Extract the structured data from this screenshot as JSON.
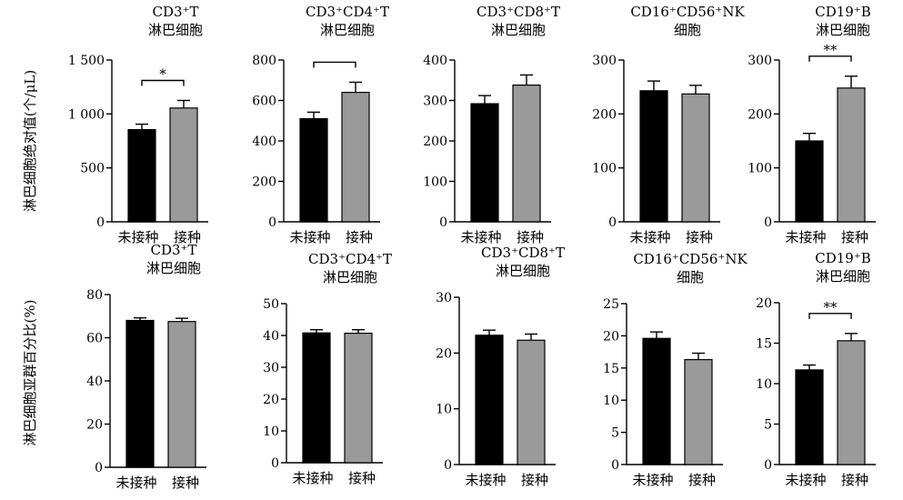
{
  "figure": {
    "row_labels": [
      "淋巴细胞绝对值(个/μL)",
      "淋巴细胞亚群百分比(%)"
    ]
  },
  "chart_data": [
    {
      "type": "bar",
      "title": "CD3⁺T|淋巴细胞",
      "categories": [
        "未接种",
        "接种"
      ],
      "values": [
        855,
        1055
      ],
      "errors": [
        50,
        70
      ],
      "ylim": [
        0,
        1500
      ],
      "yticks": [
        0,
        500,
        1000,
        1500
      ],
      "ytick_labels": [
        "0",
        "500",
        "1 000",
        "1 500"
      ],
      "colors": [
        "#000000",
        "#9a9a9a"
      ],
      "significance": "*"
    },
    {
      "type": "bar",
      "title": "CD3⁺CD4⁺T|淋巴细胞",
      "categories": [
        "未接种",
        "接种"
      ],
      "values": [
        510,
        640
      ],
      "errors": [
        32,
        50
      ],
      "ylim": [
        0,
        800
      ],
      "yticks": [
        0,
        200,
        400,
        600,
        800
      ],
      "ytick_labels": [
        "0",
        "200",
        "400",
        "600",
        "800"
      ],
      "colors": [
        "#000000",
        "#9a9a9a"
      ],
      "significance": ""
    },
    {
      "type": "bar",
      "title": "CD3⁺CD8⁺T|淋巴细胞",
      "categories": [
        "未接种",
        "接种"
      ],
      "values": [
        292,
        338
      ],
      "errors": [
        20,
        25
      ],
      "ylim": [
        0,
        400
      ],
      "yticks": [
        0,
        100,
        200,
        300,
        400
      ],
      "ytick_labels": [
        "0",
        "100",
        "200",
        "300",
        "400"
      ],
      "colors": [
        "#000000",
        "#9a9a9a"
      ]
    },
    {
      "type": "bar",
      "title": "CD16⁺CD56⁺NK|细胞",
      "categories": [
        "未接种",
        "接种"
      ],
      "values": [
        243,
        237
      ],
      "errors": [
        18,
        16
      ],
      "ylim": [
        0,
        300
      ],
      "yticks": [
        0,
        100,
        200,
        300
      ],
      "ytick_labels": [
        "0",
        "100",
        "200",
        "300"
      ],
      "colors": [
        "#000000",
        "#9a9a9a"
      ]
    },
    {
      "type": "bar",
      "title": "CD19⁺B|淋巴细胞",
      "categories": [
        "未接种",
        "接种"
      ],
      "values": [
        150,
        248
      ],
      "errors": [
        14,
        22
      ],
      "ylim": [
        0,
        300
      ],
      "yticks": [
        0,
        100,
        200,
        300
      ],
      "ytick_labels": [
        "0",
        "100",
        "200",
        "300"
      ],
      "colors": [
        "#000000",
        "#9a9a9a"
      ],
      "significance": "**"
    },
    {
      "type": "bar",
      "title": "CD3⁺T|淋巴细胞",
      "categories": [
        "未接种",
        "接种"
      ],
      "values": [
        68,
        67.5
      ],
      "errors": [
        1.2,
        1.5
      ],
      "ylim": [
        0,
        80
      ],
      "yticks": [
        0,
        20,
        40,
        60,
        80
      ],
      "ytick_labels": [
        "0",
        "20",
        "40",
        "60",
        "80"
      ],
      "colors": [
        "#000000",
        "#9a9a9a"
      ]
    },
    {
      "type": "bar",
      "title": "CD3⁺CD4⁺T|淋巴细胞",
      "categories": [
        "未接种",
        "接种"
      ],
      "values": [
        40.8,
        40.7
      ],
      "errors": [
        1.0,
        1.1
      ],
      "ylim": [
        0,
        50
      ],
      "yticks": [
        0,
        10,
        20,
        30,
        40,
        50
      ],
      "ytick_labels": [
        "0",
        "10",
        "20",
        "30",
        "40",
        "50"
      ],
      "colors": [
        "#000000",
        "#9a9a9a"
      ]
    },
    {
      "type": "bar",
      "title": "CD3⁺CD8⁺T|淋巴细胞",
      "categories": [
        "未接种",
        "接种"
      ],
      "values": [
        23.2,
        22.3
      ],
      "errors": [
        0.9,
        1.1
      ],
      "ylim": [
        0,
        30
      ],
      "yticks": [
        0,
        10,
        20,
        30
      ],
      "ytick_labels": [
        "0",
        "10",
        "20",
        "30"
      ],
      "colors": [
        "#000000",
        "#9a9a9a"
      ]
    },
    {
      "type": "bar",
      "title": "CD16⁺CD56⁺NK|细胞",
      "categories": [
        "未接种",
        "接种"
      ],
      "values": [
        19.6,
        16.3
      ],
      "errors": [
        1.0,
        1.0
      ],
      "ylim": [
        0,
        25
      ],
      "yticks": [
        0,
        5,
        10,
        15,
        20,
        25
      ],
      "ytick_labels": [
        "0",
        "5",
        "10",
        "15",
        "20",
        "25"
      ],
      "colors": [
        "#000000",
        "#9a9a9a"
      ]
    },
    {
      "type": "bar",
      "title": "CD19⁺B|淋巴细胞",
      "categories": [
        "未接种",
        "接种"
      ],
      "values": [
        11.7,
        15.3
      ],
      "errors": [
        0.6,
        0.9
      ],
      "ylim": [
        0,
        20
      ],
      "yticks": [
        0,
        5,
        10,
        15,
        20
      ],
      "ytick_labels": [
        "0",
        "5",
        "10",
        "15",
        "20"
      ],
      "colors": [
        "#000000",
        "#9a9a9a"
      ],
      "significance": "**"
    }
  ]
}
